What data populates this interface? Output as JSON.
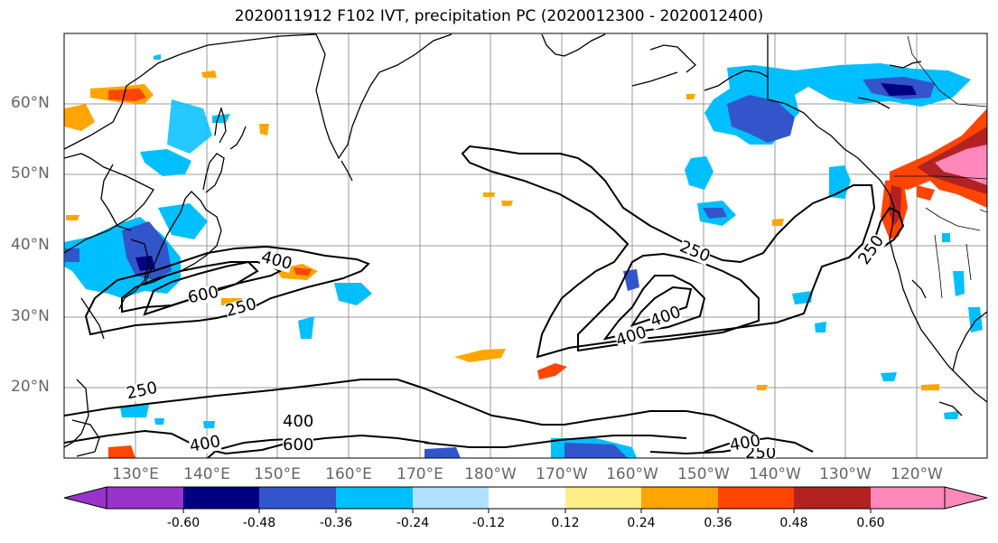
{
  "title": "2020011912 F102 IVT, precipitation PC (2020012300 - 2020012400)",
  "map": {
    "lat_labels": [
      "60°N",
      "50°N",
      "40°N",
      "30°N",
      "20°N"
    ],
    "lon_labels": [
      "130°E",
      "140°E",
      "150°E",
      "160°E",
      "170°E",
      "180°W",
      "170°W",
      "160°W",
      "150°W",
      "140°W",
      "130°W",
      "120°W"
    ],
    "ivt_contour_labels": [
      "250",
      "400",
      "600",
      "250",
      "400",
      "600",
      "400",
      "250",
      "400",
      "400",
      "250"
    ]
  },
  "colorbar": {
    "tick_labels": [
      "-0.60",
      "-0.48",
      "-0.36",
      "-0.24",
      "-0.12",
      "0.12",
      "0.24",
      "0.36",
      "0.48",
      "0.60"
    ],
    "colors": [
      "#9933cc",
      "#000080",
      "#3355cc",
      "#00bfff",
      "#b0e2ff",
      "#ffffff",
      "#ffee88",
      "#ffa500",
      "#ff4500",
      "#b22222",
      "#ff88bb",
      "#ff88bb"
    ]
  }
}
